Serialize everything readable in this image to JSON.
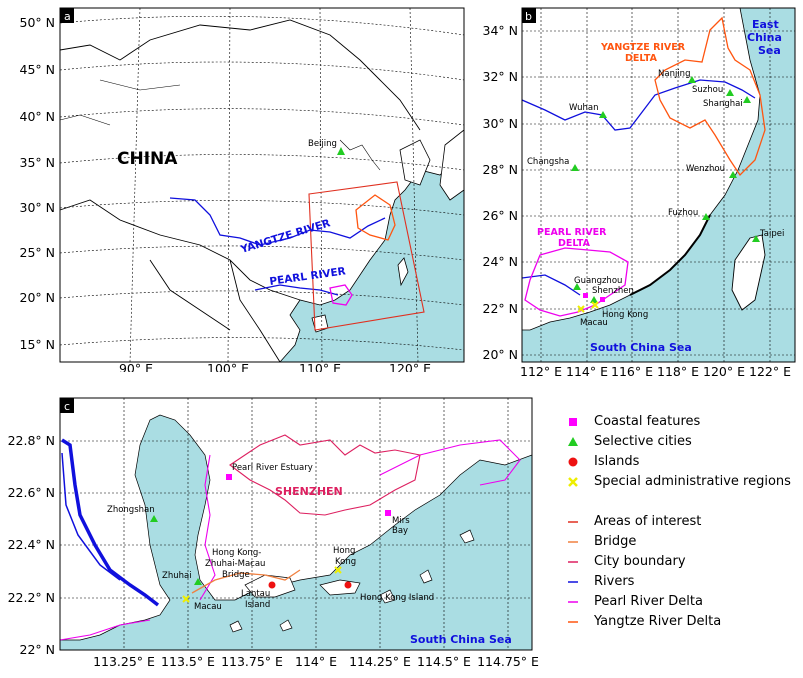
{
  "panel_a": {
    "tag": "a",
    "lat_labels": [
      "50° N",
      "45° N",
      "40° N",
      "35° N",
      "30° N",
      "25° N",
      "20° N",
      "15° N"
    ],
    "lon_labels": [
      "90° E",
      "100° E",
      "110° E",
      "120° E"
    ],
    "labels": {
      "china": "CHINA",
      "beijing": "Beijing",
      "yangtze": "YANGTZE RIVER",
      "pearl": "PEARL RIVER"
    }
  },
  "panel_b": {
    "tag": "b",
    "lat_labels": [
      "34° N",
      "32° N",
      "30° N",
      "28° N",
      "26° N",
      "24° N",
      "22° N",
      "20° N"
    ],
    "lon_labels": [
      "112° E",
      "114° E",
      "116° E",
      "118° E",
      "120° E",
      "122° E"
    ],
    "labels": {
      "east_china_sea_1": "East",
      "east_china_sea_2": "China",
      "east_china_sea_3": "Sea",
      "yrd_1": "YANGTZE RIVER",
      "yrd_2": "DELTA",
      "prd_1": "PEARL RIVER",
      "prd_2": "DELTA",
      "scs": "South China Sea",
      "nanjing": "Nanjing",
      "suzhou": "Suzhou",
      "shanghai": "Shanghai",
      "wuhan": "Wuhan",
      "changsha": "Changsha",
      "wenzhou": "Wenzhou",
      "fuzhou": "Fuzhou",
      "taipei": "Taipei",
      "guangzhou": "Guangzhou",
      "shenzhen": "Shenzhen",
      "hongkong": "Hong Kong",
      "macau": "Macau"
    }
  },
  "panel_c": {
    "tag": "c",
    "lat_labels": [
      "22.8° N",
      "22.6° N",
      "22.4° N",
      "22.2° N",
      "22° N"
    ],
    "lon_labels": [
      "113.25° E",
      "113.5° E",
      "113.75° E",
      "114° E",
      "114.25° E",
      "114.5° E",
      "114.75° E"
    ],
    "labels": {
      "pre": "Pearl River Estuary",
      "shenzhen": "SHENZHEN",
      "zhongshan": "Zhongshan",
      "mirs_1": "Mirs",
      "mirs_2": "Bay",
      "hzmb_1": "Hong Kong-",
      "hzmb_2": "Zhuhai-Macau",
      "hzmb_3": "Bridge",
      "zhuhai": "Zhuhai",
      "macau": "Macau",
      "lantau_1": "Lantau",
      "lantau_2": "Island",
      "hk_1": "Hong",
      "hk_2": "Kong",
      "hki": "Hong Kong Island",
      "scs": "South China Sea"
    }
  },
  "legend": {
    "items": [
      {
        "label": "Coastal features",
        "marker": "square",
        "color": "#ff00ff"
      },
      {
        "label": "Selective cities",
        "marker": "triangle",
        "color": "#22cc22"
      },
      {
        "label": "Islands",
        "marker": "circle",
        "color": "#ee1111"
      },
      {
        "label": "Special administrative regions",
        "marker": "cross",
        "color": "#eeee00"
      }
    ],
    "lines": [
      {
        "label": "Areas of interest",
        "color": "#e03020"
      },
      {
        "label": "Bridge",
        "color": "#f08040"
      },
      {
        "label": "City boundary",
        "color": "#dd2060"
      },
      {
        "label": "Rivers",
        "color": "#1010dd"
      },
      {
        "label": "Pearl River Delta",
        "color": "#ee00ee"
      },
      {
        "label": "Yangtze River Delta",
        "color": "#ff5510"
      }
    ]
  },
  "colors": {
    "sea": "#aadde3",
    "land": "#ffffff",
    "river": "#1010dd",
    "prd": "#ee00ee",
    "yrd": "#ff5510",
    "city": "#22cc22",
    "sar": "#eeee00",
    "island": "#ee1111",
    "box": "#e03020",
    "shenzhen": "#dd2060",
    "bridge": "#f08040"
  }
}
